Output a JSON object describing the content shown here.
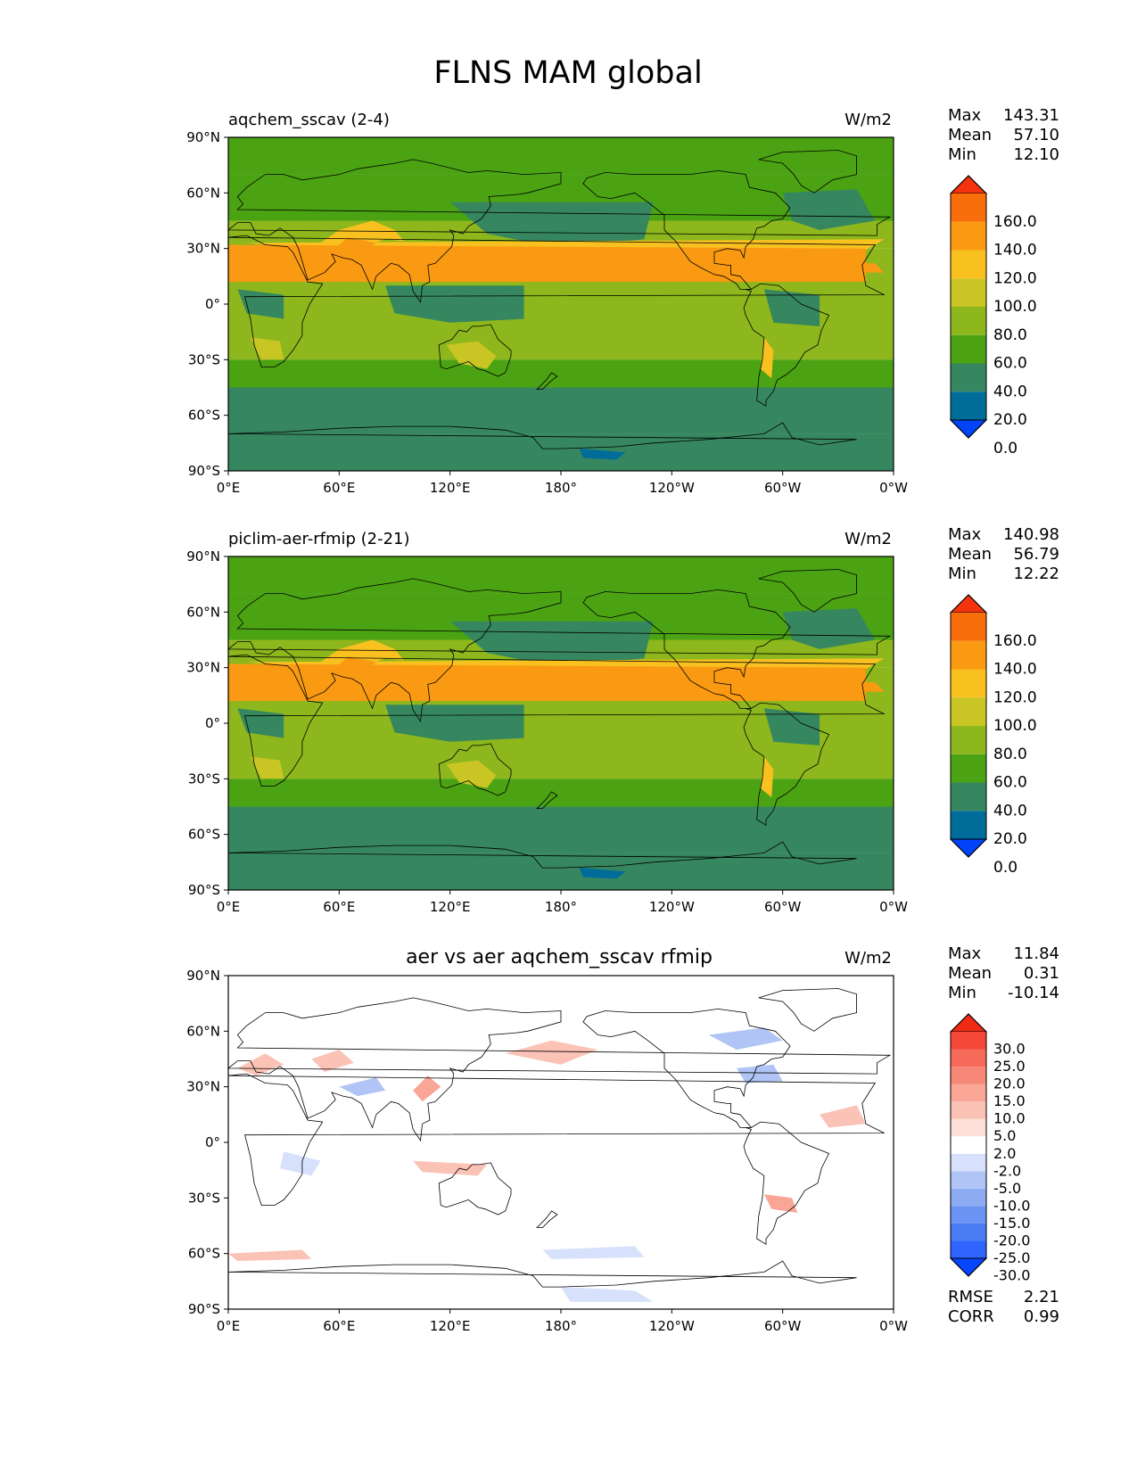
{
  "page": {
    "title": "FLNS MAM global"
  },
  "colors": {
    "abs_levels": [
      "#0043f9",
      "#006c9a",
      "#36875f",
      "#4ba313",
      "#8db71c",
      "#c9c524",
      "#f9c120",
      "#f99a12",
      "#f76e0b",
      "#f6330f"
    ],
    "diff_levels": [
      "#0646ff",
      "#2f64ff",
      "#4a7cf3",
      "#6b93f3",
      "#8eacf3",
      "#b0c5f6",
      "#d8e1fb",
      "#ffffff",
      "#fde0d8",
      "#fbc2b6",
      "#f9a697",
      "#f78878",
      "#f56a58",
      "#f34838",
      "#f02a14"
    ],
    "land_outline": "#000000",
    "ocean_tropics": "#8db71c",
    "ocean_midlat": "#36875f",
    "antarctica": "#36875f"
  },
  "chart_data": [
    {
      "type": "heatmap",
      "projection": "plate-carree",
      "title": "aqchem_sscav (2-4)",
      "units": "W/m2",
      "stats": [
        {
          "label": "Max",
          "value": "143.31"
        },
        {
          "label": "Mean",
          "value": "57.10"
        },
        {
          "label": "Min",
          "value": "12.10"
        }
      ],
      "colorbar": {
        "levels": [
          0,
          20,
          40,
          60,
          80,
          100,
          120,
          140,
          160
        ],
        "tick_labels": [
          "160.0",
          "140.0",
          "120.0",
          "100.0",
          "80.0",
          "60.0",
          "40.0",
          "20.0",
          "0.0"
        ],
        "extend": "both"
      },
      "xlim": [
        0,
        360
      ],
      "ylim": [
        -90,
        90
      ],
      "xticks": [
        "0°E",
        "60°E",
        "120°E",
        "180°",
        "120°W",
        "60°W",
        "0°W"
      ],
      "yticks": [
        "90°N",
        "60°N",
        "30°N",
        "0°",
        "30°S",
        "60°S",
        "90°S"
      ]
    },
    {
      "type": "heatmap",
      "projection": "plate-carree",
      "title": "piclim-aer-rfmip (2-21)",
      "units": "W/m2",
      "stats": [
        {
          "label": "Max",
          "value": "140.98"
        },
        {
          "label": "Mean",
          "value": "56.79"
        },
        {
          "label": "Min",
          "value": "12.22"
        }
      ],
      "colorbar": {
        "levels": [
          0,
          20,
          40,
          60,
          80,
          100,
          120,
          140,
          160
        ],
        "tick_labels": [
          "160.0",
          "140.0",
          "120.0",
          "100.0",
          "80.0",
          "60.0",
          "40.0",
          "20.0",
          "0.0"
        ],
        "extend": "both"
      },
      "xlim": [
        0,
        360
      ],
      "ylim": [
        -90,
        90
      ],
      "xticks": [
        "0°E",
        "60°E",
        "120°E",
        "180°",
        "120°W",
        "60°W",
        "0°W"
      ],
      "yticks": [
        "90°N",
        "60°N",
        "30°N",
        "0°",
        "30°S",
        "60°S",
        "90°S"
      ]
    },
    {
      "type": "heatmap",
      "projection": "plate-carree",
      "title": "aer vs aer aqchem_sscav rfmip",
      "units": "W/m2",
      "stats": [
        {
          "label": "Max",
          "value": "11.84"
        },
        {
          "label": "Mean",
          "value": "0.31"
        },
        {
          "label": "Min",
          "value": "-10.14"
        }
      ],
      "colorbar": {
        "levels": [
          -30,
          -25,
          -20,
          -15,
          -10,
          -5,
          -2,
          2,
          5,
          10,
          15,
          20,
          25,
          30
        ],
        "tick_labels": [
          "30.0",
          "25.0",
          "20.0",
          "15.0",
          "10.0",
          "5.0",
          "2.0",
          "-2.0",
          "-5.0",
          "-10.0",
          "-15.0",
          "-20.0",
          "-25.0",
          "-30.0"
        ],
        "extend": "both"
      },
      "metrics": [
        {
          "label": "RMSE",
          "value": "2.21"
        },
        {
          "label": "CORR",
          "value": "0.99"
        }
      ],
      "xlim": [
        0,
        360
      ],
      "ylim": [
        -90,
        90
      ],
      "xticks": [
        "0°E",
        "60°E",
        "120°E",
        "180°",
        "120°W",
        "60°W",
        "0°W"
      ],
      "yticks": [
        "90°N",
        "60°N",
        "30°N",
        "0°",
        "30°S",
        "60°S",
        "90°S"
      ]
    }
  ]
}
